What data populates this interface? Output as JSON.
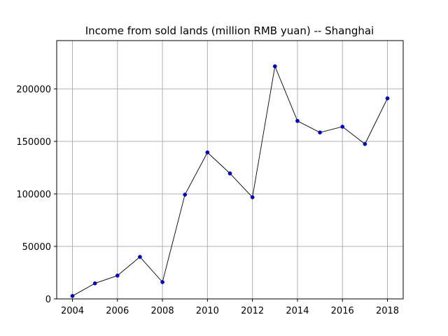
{
  "chart_data": {
    "type": "line",
    "title": "Income from sold lands (million RMB yuan) -- Shanghai",
    "xlabel": "",
    "ylabel": "",
    "x": [
      2004,
      2005,
      2006,
      2007,
      2008,
      2009,
      2010,
      2011,
      2012,
      2013,
      2014,
      2015,
      2016,
      2017,
      2018
    ],
    "series": [
      {
        "values": [
          2800,
          14800,
          22200,
          40000,
          16000,
          99300,
          139500,
          119500,
          96800,
          221500,
          169500,
          158500,
          164000,
          147500,
          191000
        ],
        "line_color": "#000000",
        "marker_color": "#0000cc"
      }
    ],
    "xlim": [
      2003.3,
      2018.7
    ],
    "ylim": [
      0,
      246000
    ],
    "xticks": [
      2004,
      2006,
      2008,
      2010,
      2012,
      2014,
      2016,
      2018
    ],
    "yticks": [
      0,
      50000,
      100000,
      150000,
      200000
    ],
    "grid": true,
    "grid_color": "#b0b0b0"
  }
}
